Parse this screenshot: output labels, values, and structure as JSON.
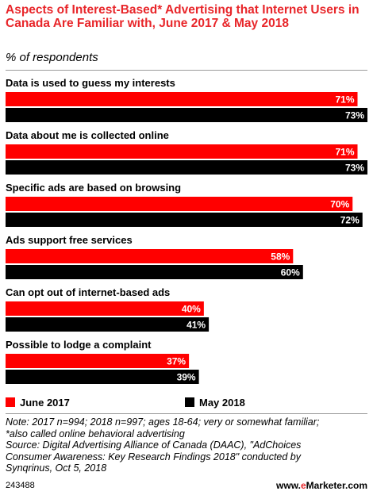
{
  "header": {
    "title": "Aspects of Interest-Based* Advertising that Internet Users in Canada Are Familiar with, June 2017 & May 2018",
    "subtitle": "% of respondents"
  },
  "chart_data": {
    "type": "bar",
    "orientation": "horizontal",
    "categories": [
      "Data is used to guess my interests",
      "Data about me is collected online",
      "Specific ads are based on browsing",
      "Ads support free services",
      "Can opt out of internet-based ads",
      "Possible to lodge a complaint"
    ],
    "series": [
      {
        "name": "June 2017",
        "values": [
          71,
          71,
          70,
          58,
          40,
          37
        ],
        "labels": [
          "71%",
          "71%",
          "70%",
          "58%",
          "40%",
          "37%"
        ],
        "color": "#ff0000"
      },
      {
        "name": "May 2018",
        "values": [
          73,
          73,
          72,
          60,
          41,
          39
        ],
        "labels": [
          "73%",
          "73%",
          "72%",
          "60%",
          "41%",
          "39%"
        ],
        "color": "#000000"
      }
    ],
    "xlim": [
      0,
      73
    ],
    "grid": false,
    "legend": "bottom-left"
  },
  "notes": {
    "line1": "Note: 2017 n=994; 2018 n=997; ages 18-64; very or somewhat familiar;",
    "line2": "*also called online behavioral advertising",
    "line3": "Source: Digital Advertising Alliance of Canada (DAAC), \"AdChoices",
    "line4": "Consumer Awareness: Key Research Findings 2018\" conducted by",
    "line5": "Synqrinus, Oct 5, 2018"
  },
  "footer": {
    "id": "243488",
    "brand_prefix": "www.",
    "brand_e": "e",
    "brand_suffix": "Marketer.com"
  }
}
